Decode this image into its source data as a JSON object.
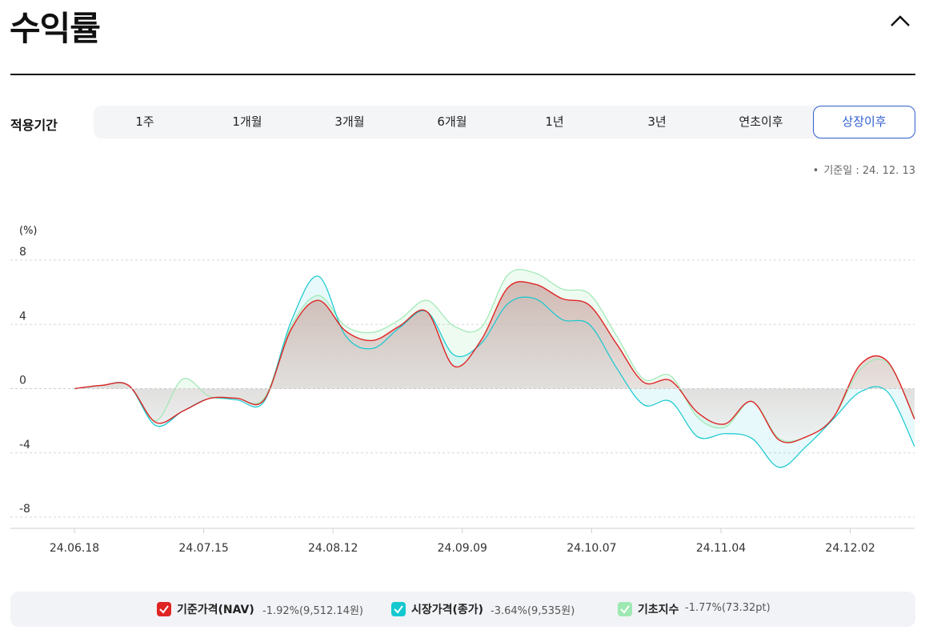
{
  "page": {
    "title": "수익률"
  },
  "period": {
    "label": "적용기간",
    "tabs": [
      "1주",
      "1개월",
      "3개월",
      "6개월",
      "1년",
      "3년",
      "연초이후",
      "상장이후"
    ],
    "active": "상장이후"
  },
  "as_of": "기준일 : 24. 12. 13",
  "legend": [
    {
      "name": "기준가격(NAV)",
      "value": "-1.92%(9,512.14원)",
      "color": "#e02424"
    },
    {
      "name": "시장가격(종가)",
      "value": "-3.64%(9,535원)",
      "color": "#15c8cf"
    },
    {
      "name": "기초지수",
      "value": "-1.77%(73.32pt)",
      "color": "#9ee8b4"
    }
  ],
  "chart_data": {
    "type": "line",
    "unit_label": "(%)",
    "y_ticks": [
      "8",
      "4",
      "0",
      "-4",
      "-8"
    ],
    "ylim": [
      -8,
      8
    ],
    "x_ticks": [
      "24.06.18",
      "24.07.15",
      "24.08.12",
      "24.09.09",
      "24.10.07",
      "24.11.04",
      "24.12.02"
    ],
    "x": [
      "24.06.18",
      "24.06.22",
      "24.06.25",
      "24.07.01",
      "24.07.09",
      "24.07.15",
      "24.07.22",
      "24.07.29",
      "24.08.01",
      "24.08.05",
      "24.08.08",
      "24.08.12",
      "24.08.15",
      "24.08.19",
      "24.08.26",
      "24.08.30",
      "24.09.03",
      "24.09.09",
      "24.09.16",
      "24.09.23",
      "24.09.30",
      "24.10.07",
      "24.10.14",
      "24.10.21",
      "24.10.28",
      "24.11.04",
      "24.11.11",
      "24.11.18",
      "24.11.25",
      "24.12.02",
      "24.12.09",
      "24.12.13"
    ],
    "series": [
      {
        "name": "기준가격(NAV)",
        "color": "#e02424",
        "values": [
          0.0,
          0.2,
          0.2,
          -2.1,
          -1.4,
          -0.6,
          -0.6,
          -0.7,
          3.7,
          5.5,
          3.6,
          3.0,
          3.9,
          4.8,
          1.4,
          3.0,
          6.3,
          6.5,
          5.6,
          5.2,
          2.8,
          0.4,
          0.5,
          -1.5,
          -2.2,
          -0.8,
          -3.2,
          -3.0,
          -1.8,
          1.5,
          1.7,
          -1.9
        ]
      },
      {
        "name": "시장가격(종가)",
        "color": "#15c8cf",
        "values": [
          0.0,
          0.2,
          0.2,
          -2.3,
          -1.4,
          -0.6,
          -0.7,
          -0.8,
          4.2,
          7.0,
          3.3,
          2.5,
          3.8,
          4.8,
          2.1,
          2.8,
          5.3,
          5.6,
          4.3,
          4.0,
          1.3,
          -1.0,
          -0.8,
          -3.0,
          -2.8,
          -3.1,
          -4.9,
          -3.6,
          -1.9,
          -0.2,
          -0.2,
          -3.6
        ]
      },
      {
        "name": "기초지수",
        "color": "#9ee8b4",
        "values": [
          0.0,
          0.2,
          0.2,
          -2.0,
          0.6,
          -0.5,
          -0.6,
          -0.6,
          3.9,
          5.8,
          3.9,
          3.5,
          4.3,
          5.5,
          3.9,
          3.8,
          7.1,
          7.2,
          6.2,
          5.9,
          3.3,
          0.6,
          0.8,
          -1.8,
          -2.4,
          -0.8,
          -3.1,
          -3.0,
          -1.8,
          1.2,
          1.6,
          -1.8
        ]
      }
    ]
  }
}
